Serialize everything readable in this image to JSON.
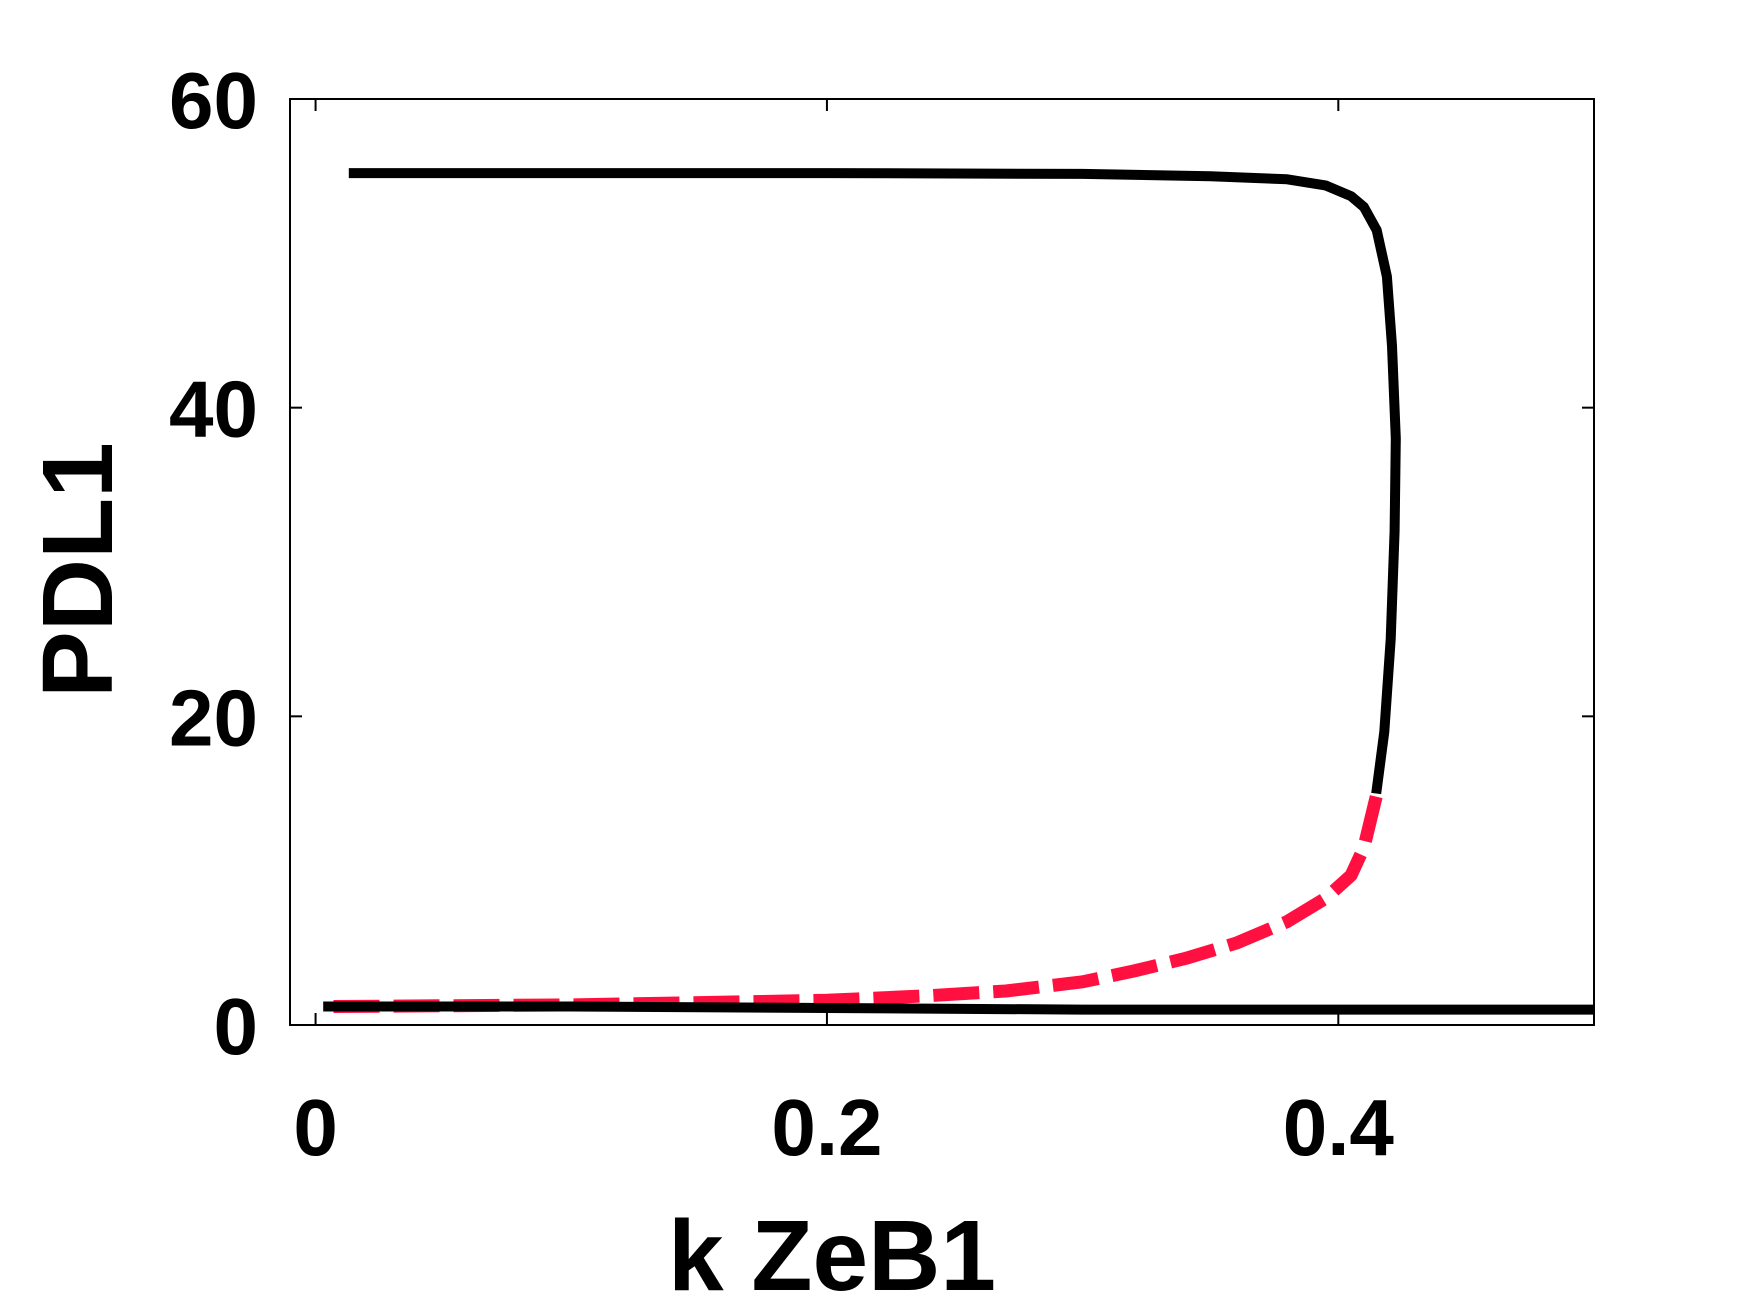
{
  "chart_data": {
    "type": "line",
    "title": "",
    "xlabel": "k ZeB1",
    "ylabel": "PDL1",
    "xlim": [
      -0.01,
      0.5
    ],
    "ylim": [
      0,
      60
    ],
    "x_ticks": [
      0,
      0.2,
      0.4
    ],
    "x_tick_labels": [
      "0",
      "0.2",
      "0.4"
    ],
    "y_ticks": [
      0,
      20,
      40,
      60
    ],
    "y_tick_labels": [
      "0",
      "20",
      "40",
      "60"
    ],
    "grid": false,
    "legend": "none",
    "colors": {
      "stable": "#000000",
      "unstable": "#ff1040"
    },
    "series": [
      {
        "style": "solid",
        "color": "#000000",
        "points": [
          [
            0.013,
            55.2
          ],
          [
            0.2,
            55.2
          ],
          [
            0.3,
            55.15
          ],
          [
            0.35,
            55.0
          ],
          [
            0.38,
            54.8
          ],
          [
            0.395,
            54.4
          ],
          [
            0.405,
            53.7
          ],
          [
            0.41,
            53.0
          ],
          [
            0.415,
            51.5
          ],
          [
            0.419,
            48.5
          ],
          [
            0.421,
            44.0
          ],
          [
            0.4225,
            38.0
          ],
          [
            0.422,
            32.0
          ],
          [
            0.4205,
            25.0
          ],
          [
            0.418,
            19.0
          ],
          [
            0.4148,
            15.0
          ]
        ]
      },
      {
        "style": "dashed",
        "color": "#ff1040",
        "points": [
          [
            0.4148,
            14.8
          ],
          [
            0.41,
            11.5
          ],
          [
            0.405,
            9.7
          ],
          [
            0.395,
            8.2
          ],
          [
            0.38,
            6.7
          ],
          [
            0.36,
            5.3
          ],
          [
            0.34,
            4.3
          ],
          [
            0.32,
            3.5
          ],
          [
            0.3,
            2.8
          ],
          [
            0.27,
            2.2
          ],
          [
            0.24,
            1.9
          ],
          [
            0.2,
            1.6
          ],
          [
            0.1,
            1.3
          ],
          [
            0.007,
            1.2
          ]
        ]
      },
      {
        "style": "solid",
        "color": "#000000",
        "points": [
          [
            0.003,
            1.2
          ],
          [
            0.1,
            1.2
          ],
          [
            0.2,
            1.1
          ],
          [
            0.3,
            1.0
          ],
          [
            0.4,
            1.0
          ],
          [
            0.5,
            1.0
          ]
        ]
      }
    ]
  }
}
